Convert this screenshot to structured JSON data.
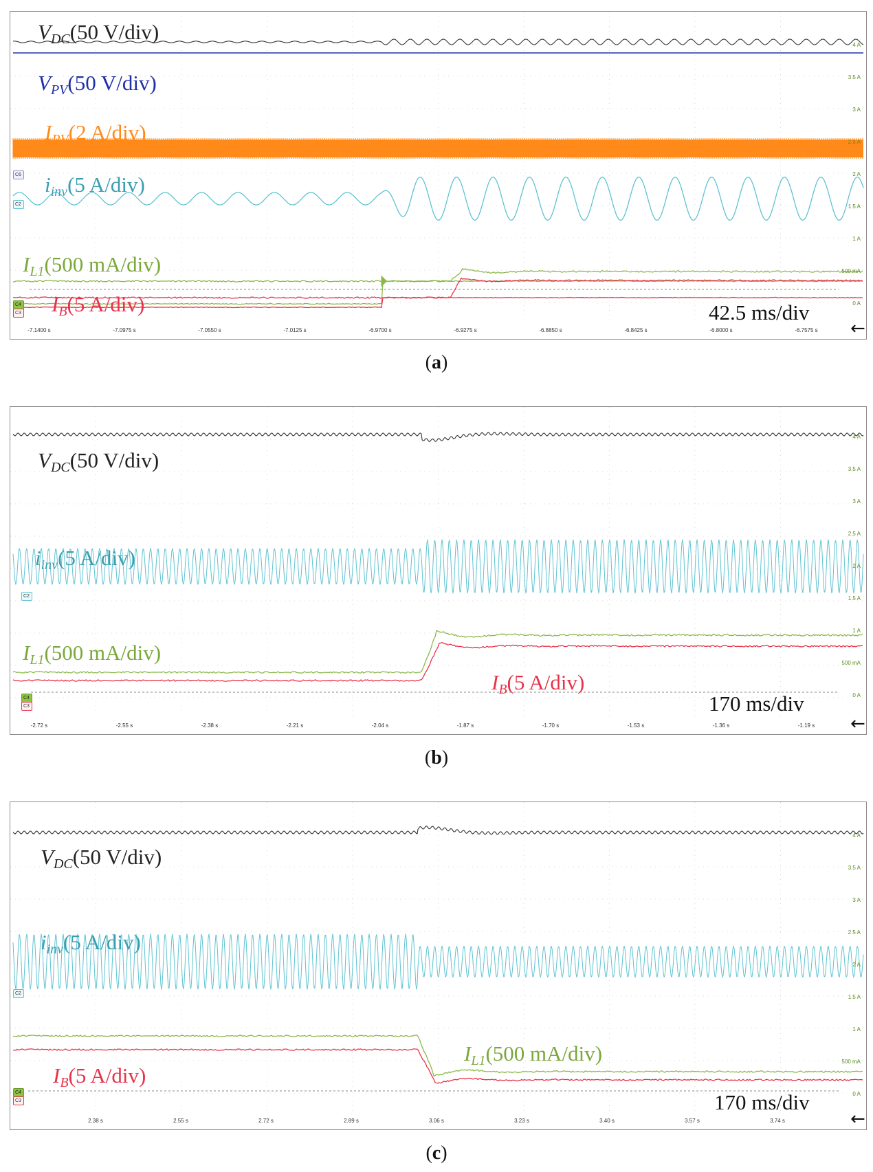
{
  "colors": {
    "vdc": "#333333",
    "vpv": "#1f2fa8",
    "ipv": "#ff8a1a",
    "iinv": "#5ec3d2",
    "il1": "#8cb84a",
    "ib": "#e8324a"
  },
  "chart_data": [
    {
      "id": "a",
      "type": "line",
      "caption": "a",
      "timebase": "42.5 ms/div",
      "x_ticks": [
        "-7.1400 s",
        "-7.0975 s",
        "-7.0550 s",
        "-7.0125 s",
        "-6.9700 s",
        "-6.9275 s",
        "-6.8850 s",
        "-6.8425 s",
        "-6.8000 s",
        "-6.7575 s"
      ],
      "right_ticks": [
        "4 A",
        "3.5 A",
        "3 A",
        "2.5 A",
        "2 A",
        "1.5 A",
        "1 A",
        "500 mA",
        "0 A"
      ],
      "channel_badges": [
        "C6",
        "C2",
        "C4",
        "C3"
      ],
      "step_time_s": -6.97,
      "series": [
        {
          "key": "vdc",
          "sym": "V",
          "sub": "DC",
          "scale": "(50 V/div)",
          "before": "steady DC, small ripple",
          "after": "steady DC, increased ripple"
        },
        {
          "key": "vpv",
          "sym": "V",
          "sub": "PV",
          "scale": "(50 V/div)",
          "before": "constant",
          "after": "constant"
        },
        {
          "key": "ipv",
          "sym": "I",
          "sub": "PV",
          "scale": "(2 A/div)",
          "before": "constant with high-frequency ripple",
          "after": "constant with high-frequency ripple"
        },
        {
          "key": "iinv",
          "sym": "i",
          "sub": "inv",
          "scale": "(5 A/div)",
          "amplitude_before_div": 0.35,
          "amplitude_after_div": 1.15
        },
        {
          "key": "il1",
          "sym": "I",
          "sub": "L1",
          "scale": "(500 mA/div)",
          "level_before_div": -0.45,
          "level_after_div": 0.6
        },
        {
          "key": "ib",
          "sym": "I",
          "sub": "B",
          "scale": "(5 A/div)",
          "level_before_div": -0.6,
          "level_after_div": 0.3
        }
      ]
    },
    {
      "id": "b",
      "type": "line",
      "caption": "b",
      "timebase": "170 ms/div",
      "x_ticks": [
        "-2.72 s",
        "-2.55 s",
        "-2.38 s",
        "-2.21 s",
        "-2.04 s",
        "-1.87 s",
        "-1.70 s",
        "-1.53 s",
        "-1.36 s",
        "-1.19 s"
      ],
      "right_ticks": [
        "4 A",
        "3.5 A",
        "3 A",
        "2.5 A",
        "2 A",
        "1.5 A",
        "1 A",
        "500 mA",
        "0 A"
      ],
      "channel_badges": [
        "C2",
        "C4",
        "C3"
      ],
      "step_time_s": -1.96,
      "series": [
        {
          "key": "vdc",
          "sym": "V",
          "sub": "DC",
          "scale": "(50 V/div)",
          "before": "steady with ripple",
          "after": "dip then recovers"
        },
        {
          "key": "iinv",
          "sym": "i",
          "sub": "inv",
          "scale": "(5 A/div)",
          "amplitude_before_div": 0.62,
          "amplitude_after_div": 0.92
        },
        {
          "key": "il1",
          "sym": "I",
          "sub": "L1",
          "scale": "(500 mA/div)",
          "level_before_div": 0.6,
          "level_after_div": 1.75
        },
        {
          "key": "ib",
          "sym": "I",
          "sub": "B",
          "scale": "(5 A/div)",
          "level_before_div": 0.3,
          "level_after_div": 1.4
        }
      ]
    },
    {
      "id": "c",
      "type": "line",
      "caption": "c",
      "timebase": "170 ms/div",
      "x_ticks": [
        "2.38 s",
        "2.55 s",
        "2.72 s",
        "2.89 s",
        "3.06 s",
        "3.23 s",
        "3.40 s",
        "3.57 s",
        "3.74 s"
      ],
      "right_ticks": [
        "4 A",
        "3.5 A",
        "3 A",
        "2.5 A",
        "2 A",
        "1.5 A",
        "1 A",
        "500 mA",
        "0 A"
      ],
      "channel_badges": [
        "C2",
        "C4",
        "C3"
      ],
      "step_time_s": 3.02,
      "series": [
        {
          "key": "vdc",
          "sym": "V",
          "sub": "DC",
          "scale": "(50 V/div)",
          "before": "steady with ripple",
          "after": "overshoot then recovers"
        },
        {
          "key": "iinv",
          "sym": "i",
          "sub": "inv",
          "scale": "(5 A/div)",
          "amplitude_before_div": 0.95,
          "amplitude_after_div": 0.42
        },
        {
          "key": "il1",
          "sym": "I",
          "sub": "L1",
          "scale": "(500 mA/div)",
          "level_before_div": 1.75,
          "level_after_div": 0.6
        },
        {
          "key": "ib",
          "sym": "I",
          "sub": "B",
          "scale": "(5 A/div)",
          "level_before_div": 1.4,
          "level_after_div": 0.3
        }
      ]
    }
  ]
}
